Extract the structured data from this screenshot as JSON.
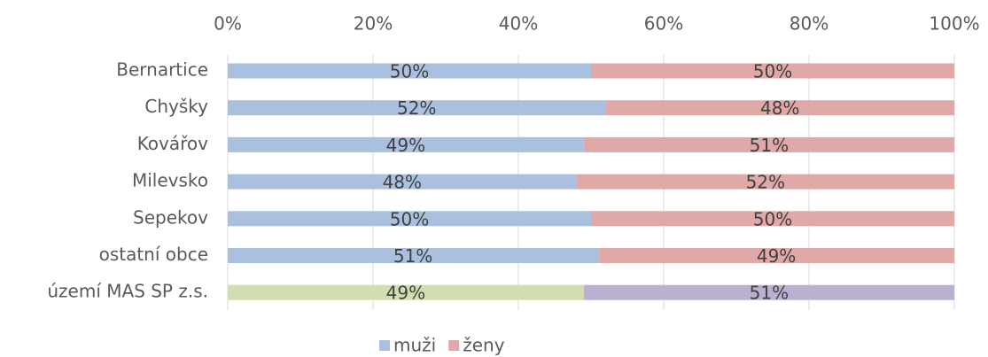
{
  "chart_data": {
    "type": "bar_stacked_horizontal_100",
    "categories": [
      "Bernartice",
      "Chyšky",
      "Kovářov",
      "Milevsko",
      "Sepekov",
      "ostatní obce",
      "území MAS SP z.s."
    ],
    "series": [
      {
        "name": "muži",
        "color": "#a9c0de",
        "values": [
          50,
          52,
          49,
          48,
          50,
          51,
          49
        ],
        "value_labels": [
          "50%",
          "52%",
          "49%",
          "48%",
          "50%",
          "51%",
          "49%"
        ],
        "colors": [
          "#a9c0de",
          "#a9c0de",
          "#a9c0de",
          "#a9c0de",
          "#a9c0de",
          "#a9c0de",
          "#d3deb0"
        ]
      },
      {
        "name": "ženy",
        "color": "#e0a8a7",
        "values": [
          50,
          48,
          51,
          52,
          50,
          49,
          51
        ],
        "value_labels": [
          "50%",
          "48%",
          "51%",
          "52%",
          "50%",
          "49%",
          "51%"
        ],
        "colors": [
          "#e0a8a7",
          "#e0a8a7",
          "#e0a8a7",
          "#e0a8a7",
          "#e0a8a7",
          "#e0a8a7",
          "#bcb0d0"
        ]
      }
    ],
    "xlim": [
      0,
      100
    ],
    "xticks": [
      {
        "value": 0,
        "label": "0%"
      },
      {
        "value": 20,
        "label": "20%"
      },
      {
        "value": 40,
        "label": "40%"
      },
      {
        "value": 60,
        "label": "60%"
      },
      {
        "value": 80,
        "label": "80%"
      },
      {
        "value": 100,
        "label": "100%"
      }
    ],
    "grid": true,
    "legend": "bottom"
  }
}
